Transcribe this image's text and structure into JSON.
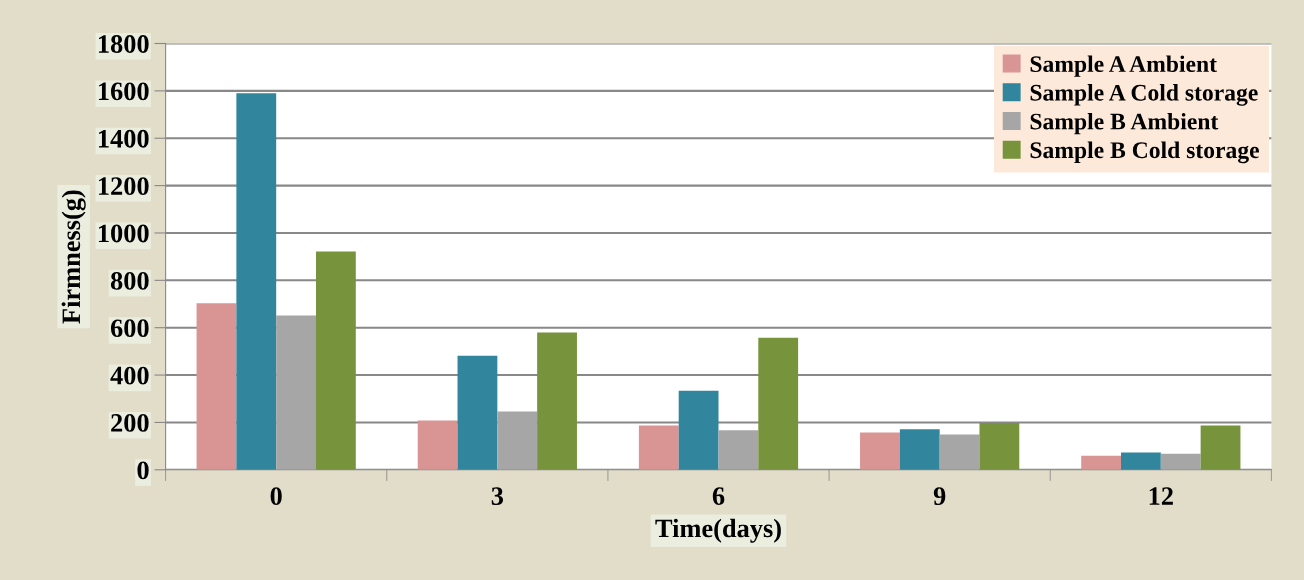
{
  "chart_data": {
    "type": "bar",
    "xlabel": "Time(days)",
    "ylabel": "Firmness(g)",
    "categories": [
      "0",
      "3",
      "6",
      "9",
      "12"
    ],
    "series": [
      {
        "name": "Sample A Ambient",
        "color": "#d99594",
        "values": [
          703,
          208,
          187,
          158,
          59
        ]
      },
      {
        "name": "Sample A Cold storage",
        "color": "#31859c",
        "values": [
          1590,
          482,
          334,
          171,
          73
        ]
      },
      {
        "name": "Sample B Ambient",
        "color": "#a6a6a6",
        "values": [
          652,
          246,
          167,
          149,
          68
        ]
      },
      {
        "name": "Sample B Cold storage",
        "color": "#77933c",
        "values": [
          922,
          580,
          558,
          198,
          187
        ]
      }
    ],
    "ylim": [
      0,
      1800
    ],
    "yticks": [
      0,
      200,
      400,
      600,
      800,
      1000,
      1200,
      1400,
      1600,
      1800
    ],
    "grid": "y",
    "legend": "top right"
  }
}
